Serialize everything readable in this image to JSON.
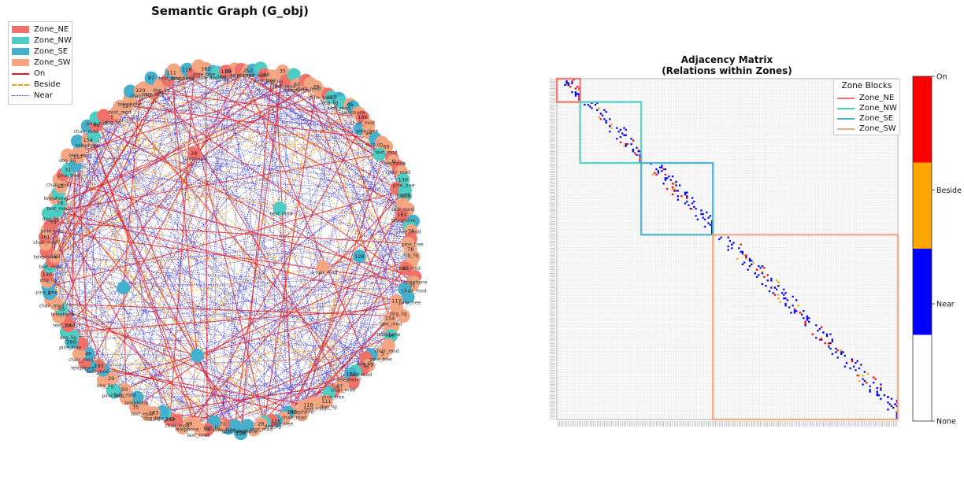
{
  "chart_data": [
    {
      "type": "network",
      "title": "Semantic Graph (G_obj)",
      "legend": {
        "zones": [
          {
            "label": "Zone_NE",
            "color": "#f0716a"
          },
          {
            "label": "Zone_NW",
            "color": "#4ecdc4"
          },
          {
            "label": "Zone_SE",
            "color": "#45b0cc"
          },
          {
            "label": "Zone_SW",
            "color": "#f4a582"
          }
        ],
        "relations": [
          {
            "label": "On",
            "color": "#e41a1c",
            "style": "solid"
          },
          {
            "label": "Beside",
            "color": "#ff9f00",
            "style": "dashed"
          },
          {
            "label": "Near",
            "color": "#2a2adf",
            "style": "dotted"
          }
        ]
      },
      "node_count": 190,
      "node_label_samples": [
        "text_mod",
        "plant_lig",
        "telephone",
        "flashlight",
        "chair_mod",
        "fire_trus",
        "pine_tree",
        "step_lig",
        "dog_lig",
        "lamp"
      ],
      "node_id_samples": [
        "69",
        "127",
        "130",
        "252",
        "120",
        "183",
        "183",
        "87",
        "161",
        "35",
        "111",
        "74",
        "50",
        "118",
        "78",
        "29",
        "162",
        "65",
        "193",
        "116",
        "31",
        "46",
        "28",
        "117",
        "186",
        "128",
        "154",
        "24",
        "75",
        "46",
        "65",
        "96",
        "5",
        "6"
      ]
    },
    {
      "type": "heatmap",
      "title": "Adjacency Matrix\n(Relations within Zones)",
      "title_line1": "Adjacency Matrix",
      "title_line2": "(Relations within Zones)",
      "matrix_size": 190,
      "legend_title": "Zone Blocks",
      "zone_blocks": [
        {
          "label": "Zone_NE",
          "color": "#f0716a",
          "start": 0,
          "end": 13
        },
        {
          "label": "Zone_NW",
          "color": "#4ecdc4",
          "start": 13,
          "end": 47
        },
        {
          "label": "Zone_SE",
          "color": "#45b0cc",
          "start": 47,
          "end": 87
        },
        {
          "label": "Zone_SW",
          "color": "#f4a582",
          "start": 87,
          "end": 190
        }
      ],
      "colorbar": {
        "ticks": [
          "None",
          "Near",
          "Beside",
          "On"
        ],
        "colors": [
          "#ffffff",
          "#0000ff",
          "#ffa500",
          "#ff0000"
        ]
      }
    }
  ]
}
